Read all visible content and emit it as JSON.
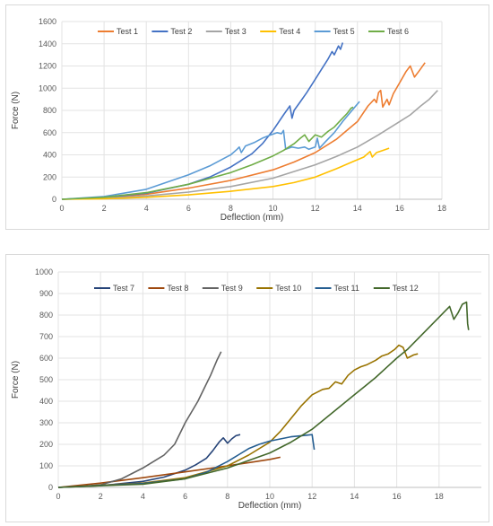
{
  "chart_data": [
    {
      "type": "line",
      "title": "",
      "xlabel": "Deflection  (mm)",
      "ylabel": "Force (N)",
      "xlim": [
        0,
        18
      ],
      "ylim": [
        0,
        1600
      ],
      "xticks": [
        0,
        2,
        4,
        6,
        8,
        10,
        12,
        14,
        16,
        18
      ],
      "yticks": [
        0,
        200,
        400,
        600,
        800,
        1000,
        1200,
        1400,
        1600
      ],
      "grid": true,
      "legend": "top",
      "series": [
        {
          "name": "Test 1",
          "color": "#ed7d31",
          "points": [
            [
              0,
              0
            ],
            [
              2,
              12
            ],
            [
              4,
              45
            ],
            [
              6,
              100
            ],
            [
              8,
              170
            ],
            [
              10,
              265
            ],
            [
              11,
              335
            ],
            [
              12,
              420
            ],
            [
              13,
              540
            ],
            [
              14,
              700
            ],
            [
              14.5,
              840
            ],
            [
              14.8,
              900
            ],
            [
              14.9,
              870
            ],
            [
              15.0,
              960
            ],
            [
              15.1,
              980
            ],
            [
              15.2,
              830
            ],
            [
              15.4,
              900
            ],
            [
              15.5,
              850
            ],
            [
              15.7,
              950
            ],
            [
              16.0,
              1050
            ],
            [
              16.3,
              1150
            ],
            [
              16.5,
              1200
            ],
            [
              16.7,
              1100
            ],
            [
              16.9,
              1150
            ],
            [
              17.2,
              1230
            ]
          ]
        },
        {
          "name": "Test 2",
          "color": "#4472c4",
          "points": [
            [
              0,
              0
            ],
            [
              2,
              15
            ],
            [
              4,
              55
            ],
            [
              6,
              135
            ],
            [
              7,
              200
            ],
            [
              8,
              290
            ],
            [
              9,
              410
            ],
            [
              9.5,
              500
            ],
            [
              10,
              620
            ],
            [
              10.5,
              760
            ],
            [
              10.8,
              840
            ],
            [
              10.9,
              730
            ],
            [
              11.0,
              800
            ],
            [
              11.3,
              880
            ],
            [
              11.6,
              960
            ],
            [
              12.0,
              1080
            ],
            [
              12.3,
              1170
            ],
            [
              12.6,
              1260
            ],
            [
              12.8,
              1330
            ],
            [
              12.9,
              1300
            ],
            [
              13.1,
              1380
            ],
            [
              13.2,
              1350
            ],
            [
              13.3,
              1410
            ]
          ]
        },
        {
          "name": "Test 3",
          "color": "#a5a5a5",
          "points": [
            [
              0,
              0
            ],
            [
              2,
              8
            ],
            [
              4,
              30
            ],
            [
              6,
              65
            ],
            [
              8,
              115
            ],
            [
              10,
              190
            ],
            [
              12,
              310
            ],
            [
              13,
              385
            ],
            [
              14,
              470
            ],
            [
              15,
              580
            ],
            [
              16,
              700
            ],
            [
              16.5,
              760
            ],
            [
              17,
              840
            ],
            [
              17.4,
              900
            ],
            [
              17.7,
              960
            ],
            [
              17.8,
              980
            ]
          ]
        },
        {
          "name": "Test 4",
          "color": "#ffc000",
          "points": [
            [
              0,
              0
            ],
            [
              2,
              5
            ],
            [
              4,
              18
            ],
            [
              6,
              40
            ],
            [
              8,
              72
            ],
            [
              10,
              115
            ],
            [
              11,
              150
            ],
            [
              12,
              200
            ],
            [
              13,
              275
            ],
            [
              13.8,
              340
            ],
            [
              14.3,
              380
            ],
            [
              14.6,
              430
            ],
            [
              14.7,
              380
            ],
            [
              14.9,
              420
            ],
            [
              15.2,
              440
            ],
            [
              15.5,
              460
            ]
          ]
        },
        {
          "name": "Test 5",
          "color": "#5b9bd5",
          "points": [
            [
              0,
              0
            ],
            [
              2,
              25
            ],
            [
              4,
              90
            ],
            [
              6,
              220
            ],
            [
              7,
              300
            ],
            [
              7.6,
              360
            ],
            [
              8,
              400
            ],
            [
              8.3,
              450
            ],
            [
              8.4,
              470
            ],
            [
              8.5,
              420
            ],
            [
              8.7,
              480
            ],
            [
              9.1,
              510
            ],
            [
              9.5,
              550
            ],
            [
              9.9,
              580
            ],
            [
              10.2,
              600
            ],
            [
              10.4,
              590
            ],
            [
              10.5,
              620
            ],
            [
              10.6,
              450
            ],
            [
              10.9,
              470
            ],
            [
              11.2,
              460
            ],
            [
              11.5,
              470
            ],
            [
              11.7,
              450
            ],
            [
              12.0,
              470
            ],
            [
              12.1,
              550
            ],
            [
              12.2,
              460
            ],
            [
              12.5,
              520
            ],
            [
              12.9,
              600
            ],
            [
              13.3,
              700
            ],
            [
              13.7,
              790
            ],
            [
              14.1,
              880
            ]
          ]
        },
        {
          "name": "Test 6",
          "color": "#70ad47",
          "points": [
            [
              0,
              0
            ],
            [
              2,
              18
            ],
            [
              4,
              60
            ],
            [
              6,
              135
            ],
            [
              8,
              240
            ],
            [
              9,
              310
            ],
            [
              10,
              390
            ],
            [
              10.5,
              440
            ],
            [
              11.0,
              500
            ],
            [
              11.3,
              550
            ],
            [
              11.5,
              580
            ],
            [
              11.7,
              520
            ],
            [
              12.0,
              580
            ],
            [
              12.3,
              560
            ],
            [
              12.6,
              610
            ],
            [
              12.9,
              650
            ],
            [
              13.2,
              710
            ],
            [
              13.5,
              770
            ],
            [
              13.7,
              820
            ],
            [
              13.8,
              830
            ]
          ]
        }
      ]
    },
    {
      "type": "line",
      "title": "",
      "xlabel": "Deflection  (mm)",
      "ylabel": "Force (N)",
      "xlim": [
        0,
        20
      ],
      "ylim": [
        0,
        1000
      ],
      "xticks": [
        0,
        2,
        4,
        6,
        8,
        10,
        12,
        14,
        16,
        18
      ],
      "yticks": [
        0,
        100,
        200,
        300,
        400,
        500,
        600,
        700,
        800,
        900,
        1000
      ],
      "grid": true,
      "legend": "top",
      "series": [
        {
          "name": "Test 7",
          "color": "#264478",
          "points": [
            [
              0,
              0
            ],
            [
              2,
              8
            ],
            [
              4,
              28
            ],
            [
              5,
              48
            ],
            [
              6,
              80
            ],
            [
              6.5,
              105
            ],
            [
              7,
              135
            ],
            [
              7.3,
              170
            ],
            [
              7.6,
              210
            ],
            [
              7.8,
              230
            ],
            [
              8.0,
              205
            ],
            [
              8.2,
              225
            ],
            [
              8.4,
              240
            ],
            [
              8.6,
              245
            ]
          ]
        },
        {
          "name": "Test 8",
          "color": "#9e480e",
          "points": [
            [
              0,
              0
            ],
            [
              2,
              20
            ],
            [
              4,
              45
            ],
            [
              6,
              72
            ],
            [
              8,
              100
            ],
            [
              9,
              115
            ],
            [
              10,
              130
            ],
            [
              10.5,
              140
            ]
          ]
        },
        {
          "name": "Test 9",
          "color": "#636363",
          "points": [
            [
              0,
              0
            ],
            [
              1,
              4
            ],
            [
              2,
              12
            ],
            [
              3,
              40
            ],
            [
              4,
              90
            ],
            [
              5,
              150
            ],
            [
              5.5,
              200
            ],
            [
              5.8,
              260
            ],
            [
              6.0,
              300
            ],
            [
              6.3,
              350
            ],
            [
              6.6,
              400
            ],
            [
              6.9,
              460
            ],
            [
              7.2,
              520
            ],
            [
              7.5,
              590
            ],
            [
              7.7,
              630
            ]
          ]
        },
        {
          "name": "Test 10",
          "color": "#997300",
          "points": [
            [
              0,
              0
            ],
            [
              4,
              20
            ],
            [
              6,
              45
            ],
            [
              8,
              100
            ],
            [
              9,
              150
            ],
            [
              10,
              210
            ],
            [
              10.5,
              260
            ],
            [
              11,
              320
            ],
            [
              11.5,
              380
            ],
            [
              12,
              430
            ],
            [
              12.5,
              455
            ],
            [
              12.8,
              460
            ],
            [
              13.1,
              490
            ],
            [
              13.4,
              480
            ],
            [
              13.7,
              520
            ],
            [
              14.0,
              545
            ],
            [
              14.3,
              560
            ],
            [
              14.6,
              570
            ],
            [
              15.0,
              590
            ],
            [
              15.3,
              610
            ],
            [
              15.6,
              620
            ],
            [
              15.9,
              640
            ],
            [
              16.1,
              660
            ],
            [
              16.3,
              650
            ],
            [
              16.5,
              600
            ],
            [
              16.8,
              615
            ],
            [
              17.0,
              620
            ]
          ]
        },
        {
          "name": "Test 11",
          "color": "#255e91",
          "points": [
            [
              0,
              0
            ],
            [
              4,
              18
            ],
            [
              6,
              40
            ],
            [
              7,
              70
            ],
            [
              8,
              120
            ],
            [
              8.5,
              150
            ],
            [
              9,
              180
            ],
            [
              9.5,
              200
            ],
            [
              10,
              215
            ],
            [
              10.5,
              225
            ],
            [
              11,
              235
            ],
            [
              11.5,
              240
            ],
            [
              12,
              245
            ],
            [
              12.1,
              175
            ]
          ]
        },
        {
          "name": "Test 12",
          "color": "#43682b",
          "points": [
            [
              0,
              0
            ],
            [
              4,
              15
            ],
            [
              6,
              40
            ],
            [
              8,
              90
            ],
            [
              10,
              160
            ],
            [
              11,
              210
            ],
            [
              12,
              270
            ],
            [
              12.5,
              310
            ],
            [
              13,
              350
            ],
            [
              13.5,
              390
            ],
            [
              14,
              430
            ],
            [
              14.5,
              470
            ],
            [
              15,
              510
            ],
            [
              15.5,
              555
            ],
            [
              16,
              600
            ],
            [
              16.5,
              640
            ],
            [
              17,
              690
            ],
            [
              17.5,
              740
            ],
            [
              18,
              790
            ],
            [
              18.3,
              820
            ],
            [
              18.5,
              840
            ],
            [
              18.7,
              780
            ],
            [
              18.9,
              810
            ],
            [
              19.1,
              850
            ],
            [
              19.3,
              860
            ],
            [
              19.35,
              760
            ],
            [
              19.4,
              730
            ]
          ]
        }
      ]
    }
  ]
}
